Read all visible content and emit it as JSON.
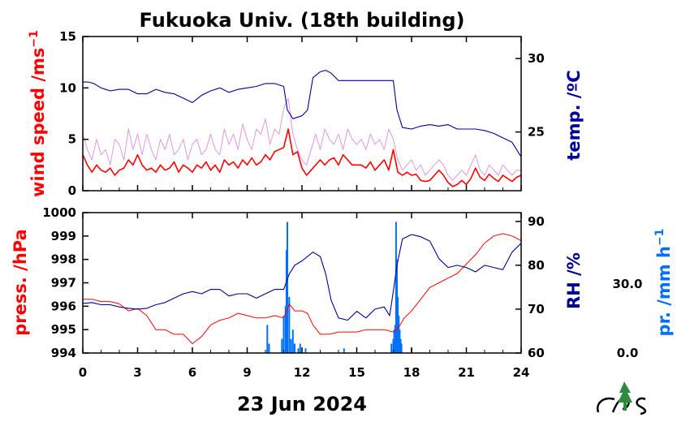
{
  "title": "Fukuoka Univ. (18th building)",
  "date_label": "23 Jun 2024",
  "colors": {
    "red": "#ff0000",
    "blue": "#000099",
    "precip": "#0070ff",
    "gust": "#dd99dd",
    "black": "#000000"
  },
  "chart_data": [
    {
      "type": "line",
      "panel": "top",
      "xlabel": "",
      "x_range": [
        0,
        24
      ],
      "x_ticks": [
        "0",
        "3",
        "6",
        "9",
        "12",
        "15",
        "18",
        "21",
        "24"
      ],
      "left_axis": {
        "label": "wind speed /ms",
        "label_sup": "−1",
        "range": [
          0,
          15
        ],
        "ticks": [
          "0",
          "5",
          "10",
          "15"
        ]
      },
      "right_axis": {
        "label": "temp. /ºC",
        "range": [
          21.0,
          31.5
        ],
        "ticks": [
          "25",
          "30"
        ]
      },
      "series": [
        {
          "axis": "left",
          "style": "gust",
          "x": [
            0,
            0.25,
            0.5,
            0.75,
            1,
            1.25,
            1.5,
            1.75,
            2,
            2.25,
            2.5,
            2.75,
            3,
            3.25,
            3.5,
            3.75,
            4,
            4.25,
            4.5,
            4.75,
            5,
            5.25,
            5.5,
            5.75,
            6,
            6.25,
            6.5,
            6.75,
            7,
            7.25,
            7.5,
            7.75,
            8,
            8.25,
            8.5,
            8.75,
            9,
            9.25,
            9.5,
            9.75,
            10,
            10.25,
            10.5,
            10.75,
            11,
            11.25,
            11.5,
            11.75,
            12,
            12.25,
            12.5,
            12.75,
            13,
            13.25,
            13.5,
            13.75,
            14,
            14.25,
            14.5,
            14.75,
            15,
            15.25,
            15.5,
            15.75,
            16,
            16.25,
            16.5,
            16.75,
            17,
            17.25,
            17.5,
            17.75,
            18,
            18.25,
            18.5,
            18.75,
            19,
            19.25,
            19.5,
            19.75,
            20,
            20.25,
            20.5,
            20.75,
            21,
            21.25,
            21.5,
            21.75,
            22,
            22.25,
            22.5,
            22.75,
            23,
            23.25,
            23.5,
            23.75,
            24
          ],
          "values": [
            5.5,
            4,
            3,
            5,
            3.5,
            4,
            2.5,
            5,
            4.5,
            3,
            6,
            4,
            5.5,
            3.5,
            5.5,
            4,
            3,
            5,
            4,
            5.5,
            3.5,
            4,
            5,
            3,
            4.5,
            5,
            3.5,
            4,
            5.5,
            4,
            3.5,
            6,
            4.5,
            5.5,
            4,
            6.5,
            5,
            4,
            6,
            5.5,
            7,
            4.5,
            6,
            5.5,
            8,
            9,
            5.5,
            4,
            3,
            2.5,
            4,
            5.5,
            4,
            6,
            5,
            4.5,
            5.5,
            4,
            6,
            5,
            4.5,
            5,
            4,
            5.5,
            4.5,
            5,
            4,
            6,
            5,
            3,
            2,
            2.5,
            3,
            2,
            2.5,
            1.5,
            2,
            2.5,
            3,
            2.5,
            1.5,
            1,
            1.5,
            2,
            1.5,
            2.5,
            3.5,
            2,
            1.5,
            2.5,
            2,
            1.5,
            2.5,
            2,
            1.5,
            2,
            2
          ]
        },
        {
          "axis": "left",
          "style": "red",
          "x": [
            0,
            0.25,
            0.5,
            0.75,
            1,
            1.25,
            1.5,
            1.75,
            2,
            2.25,
            2.5,
            2.75,
            3,
            3.25,
            3.5,
            3.75,
            4,
            4.25,
            4.5,
            4.75,
            5,
            5.25,
            5.5,
            5.75,
            6,
            6.25,
            6.5,
            6.75,
            7,
            7.25,
            7.5,
            7.75,
            8,
            8.25,
            8.5,
            8.75,
            9,
            9.25,
            9.5,
            9.75,
            10,
            10.25,
            10.5,
            10.75,
            11,
            11.25,
            11.5,
            11.75,
            12,
            12.25,
            12.5,
            12.75,
            13,
            13.25,
            13.5,
            13.75,
            14,
            14.25,
            14.5,
            14.75,
            15,
            15.25,
            15.5,
            15.75,
            16,
            16.25,
            16.5,
            16.75,
            17,
            17.25,
            17.5,
            17.75,
            18,
            18.25,
            18.5,
            18.75,
            19,
            19.25,
            19.5,
            19.75,
            20,
            20.25,
            20.5,
            20.75,
            21,
            21.25,
            21.5,
            21.75,
            22,
            22.25,
            22.5,
            22.75,
            23,
            23.25,
            23.5,
            23.75,
            24
          ],
          "values": [
            3.5,
            2.5,
            1.8,
            2.5,
            2,
            1.8,
            2.2,
            1.5,
            2,
            2.2,
            3,
            2.5,
            3.5,
            2.5,
            2,
            2.2,
            1.8,
            2.5,
            2,
            2.2,
            2.8,
            1.8,
            2.5,
            2.2,
            1.8,
            2.5,
            2.2,
            2.8,
            2,
            2.5,
            1.8,
            3,
            2.5,
            2.8,
            2.2,
            3,
            2.5,
            3.2,
            2.5,
            2.8,
            3.5,
            3,
            3.8,
            4,
            4.2,
            6,
            3.5,
            3.8,
            2.2,
            1.5,
            2,
            2.5,
            3,
            2.5,
            3,
            3.2,
            2.5,
            3.5,
            3,
            2.5,
            2.5,
            2.5,
            2.2,
            2.8,
            2,
            2.5,
            3,
            2,
            4,
            1.8,
            1.5,
            1.8,
            1.5,
            1.6,
            1,
            0.9,
            1,
            1.5,
            2,
            1.5,
            0.8,
            0.4,
            0.6,
            1,
            0.6,
            1.2,
            2.2,
            1.3,
            1,
            1.6,
            1.2,
            0.9,
            1.5,
            1.2,
            0.9,
            1.3,
            1.5
          ]
        },
        {
          "axis": "right",
          "style": "blue",
          "x": [
            0,
            0.3,
            0.6,
            1,
            1.5,
            2,
            2.5,
            3,
            3.5,
            4,
            4.5,
            5,
            5.5,
            6,
            6.5,
            7,
            7.5,
            8,
            8.5,
            9,
            9.5,
            10,
            10.5,
            11,
            11.2,
            11.5,
            12,
            12.3,
            12.6,
            13,
            13.3,
            13.6,
            14,
            14.5,
            15,
            15.5,
            16,
            16.5,
            17,
            17.2,
            17.5,
            18,
            18.5,
            19,
            19.5,
            20,
            20.5,
            21,
            21.5,
            22,
            22.5,
            23,
            23.5,
            24
          ],
          "values": [
            28.4,
            28.4,
            28.3,
            28.0,
            27.8,
            27.9,
            27.9,
            27.6,
            27.6,
            27.9,
            27.7,
            27.6,
            27.3,
            27.0,
            27.5,
            27.8,
            28.0,
            27.7,
            27.9,
            28.0,
            28.1,
            28.3,
            28.3,
            28.1,
            26.5,
            25.9,
            26.1,
            26.5,
            28.7,
            29.1,
            29.2,
            29.0,
            28.5,
            28.5,
            28.5,
            28.5,
            28.5,
            28.5,
            28.5,
            26.5,
            25.3,
            25.2,
            25.4,
            25.5,
            25.4,
            25.5,
            25.2,
            25.2,
            25.2,
            25.1,
            24.9,
            24.6,
            24.3,
            23.3
          ]
        }
      ]
    },
    {
      "type": "line",
      "panel": "bottom",
      "xlabel": "23 Jun 2024",
      "x_range": [
        0,
        24
      ],
      "x_ticks": [
        "0",
        "3",
        "6",
        "9",
        "12",
        "15",
        "18",
        "21",
        "24"
      ],
      "left_axis": {
        "label": "press. /hPa",
        "range": [
          994,
          1000
        ],
        "ticks": [
          "994",
          "995",
          "996",
          "997",
          "998",
          "999",
          "1000"
        ]
      },
      "right_axis": {
        "label": "RH /%",
        "range": [
          60,
          92
        ],
        "ticks": [
          "60",
          "70",
          "80",
          "90"
        ]
      },
      "precip_axis": {
        "label": "pr. /mm h",
        "label_sup": "−1",
        "range": [
          0,
          30
        ],
        "ticks": [
          "0.0",
          "30.0"
        ]
      },
      "series": [
        {
          "axis": "left",
          "style": "red",
          "x": [
            0,
            0.5,
            1,
            1.5,
            2,
            2.5,
            3,
            3.5,
            4,
            4.5,
            5,
            5.5,
            6,
            6.5,
            7,
            7.5,
            8,
            8.5,
            9,
            9.5,
            10,
            10.5,
            11,
            11.3,
            11.6,
            12,
            12.3,
            12.6,
            13,
            13.5,
            14,
            14.5,
            15,
            15.5,
            16,
            16.5,
            17,
            17.3,
            17.6,
            18,
            18.5,
            19,
            19.5,
            20,
            20.5,
            21,
            21.5,
            22,
            22.5,
            23,
            23.5,
            24
          ],
          "values": [
            996.3,
            996.3,
            996.2,
            996.2,
            996.1,
            995.8,
            995.9,
            995.6,
            995.0,
            995.0,
            994.8,
            994.8,
            994.4,
            994.7,
            995.2,
            995.4,
            995.5,
            995.7,
            995.6,
            995.5,
            995.5,
            995.6,
            995.5,
            996.1,
            995.8,
            995.8,
            995.7,
            995.2,
            994.8,
            994.8,
            994.9,
            994.9,
            994.9,
            995.0,
            995.0,
            995.0,
            994.9,
            995.1,
            995.5,
            995.8,
            996.3,
            996.8,
            997.0,
            997.2,
            997.4,
            997.8,
            998.2,
            998.7,
            999.0,
            999.1,
            999.0,
            998.8
          ]
        },
        {
          "axis": "right",
          "style": "blue",
          "x": [
            0,
            0.5,
            1,
            1.5,
            2,
            2.5,
            3,
            3.5,
            4,
            4.5,
            5,
            5.5,
            6,
            6.5,
            7,
            7.5,
            8,
            8.5,
            9,
            9.5,
            10,
            10.5,
            11,
            11.3,
            11.6,
            12,
            12.3,
            12.6,
            13,
            13.3,
            13.6,
            14,
            14.5,
            15,
            15.5,
            16,
            16.5,
            16.8,
            17,
            17.2,
            17.5,
            18,
            18.5,
            19,
            19.5,
            20,
            20.5,
            21,
            21.5,
            22,
            22.5,
            23,
            23.5,
            24
          ],
          "values": [
            71.3,
            71.5,
            71.0,
            71.0,
            70.5,
            70.2,
            70.0,
            70.2,
            71.0,
            71.5,
            72.5,
            73.5,
            74.0,
            73.5,
            74.5,
            74.5,
            73.0,
            73.5,
            73.5,
            72.5,
            73.5,
            74.5,
            74.5,
            78.0,
            80.0,
            81.0,
            82.0,
            83.0,
            82.0,
            78.0,
            72.0,
            68.0,
            67.5,
            69.5,
            68.0,
            70.0,
            70.5,
            68.5,
            74.0,
            80.0,
            86.0,
            87.0,
            86.5,
            85.5,
            81.5,
            79.5,
            80.0,
            79.5,
            78.5,
            80.0,
            79.5,
            79.0,
            83.0,
            85.0
          ]
        },
        {
          "axis": "precip",
          "style": "precip",
          "x": [
            10.1,
            10.2,
            10.9,
            11.0,
            11.1,
            11.15,
            11.2,
            11.3,
            11.4,
            11.5,
            11.6,
            11.8,
            11.9,
            12.2,
            14.3,
            16.9,
            17.0,
            17.05,
            17.1,
            17.15,
            17.2,
            17.25,
            17.3,
            17.35,
            17.4,
            17.45,
            18.0
          ],
          "values": [
            6,
            2,
            3,
            8,
            10,
            22,
            28,
            12,
            3,
            5,
            2,
            1,
            2,
            1,
            1,
            2,
            3,
            5,
            6,
            28,
            20,
            12,
            8,
            5,
            3,
            2,
            1
          ]
        }
      ]
    }
  ]
}
